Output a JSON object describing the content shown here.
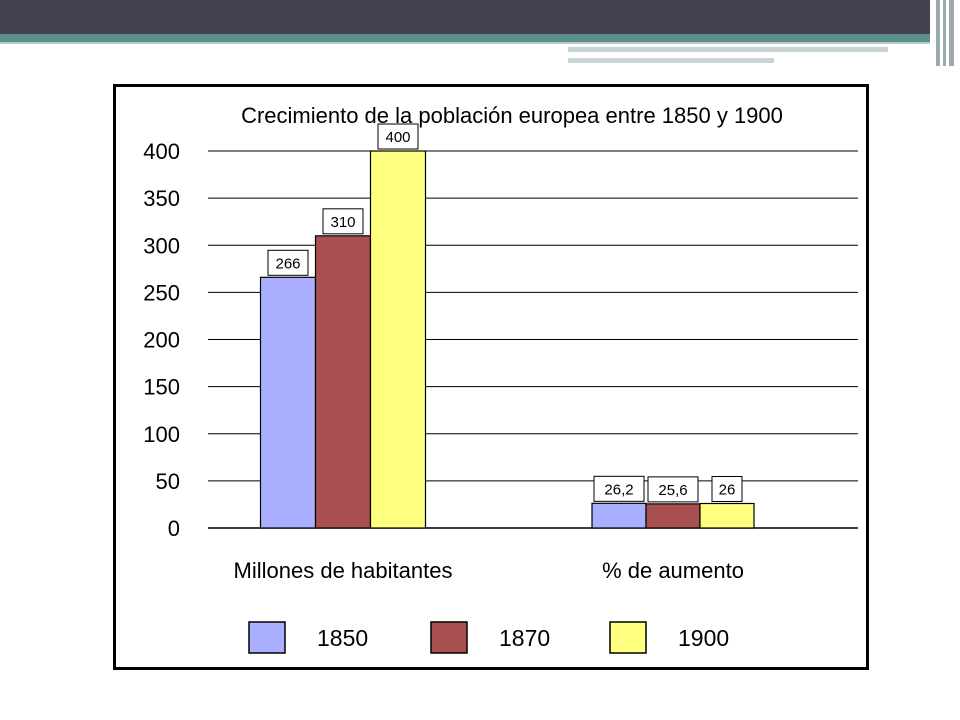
{
  "colors": {
    "header_dark": "#414150",
    "header_teal": "#5d8f8c",
    "series_1850": "#aab0ff",
    "series_1870": "#a84f4f",
    "series_1900": "#ffff80"
  },
  "chart_data": {
    "type": "bar",
    "title": "Crecimiento de la población europea entre 1850 y 1900",
    "xlabel": "",
    "ylabel": "",
    "categories": [
      "Millones de habitantes",
      "% de aumento"
    ],
    "series": [
      {
        "name": "1850",
        "values": [
          266,
          26.2
        ],
        "labels": [
          "266",
          "26,2"
        ],
        "color": "#aab0ff"
      },
      {
        "name": "1870",
        "values": [
          310,
          25.6
        ],
        "labels": [
          "310",
          "25,6"
        ],
        "color": "#a84f4f"
      },
      {
        "name": "1900",
        "values": [
          400,
          26
        ],
        "labels": [
          "400",
          "26"
        ],
        "color": "#ffff80"
      }
    ],
    "ylim": [
      0,
      400
    ],
    "yticks": [
      "0",
      "50",
      "100",
      "150",
      "200",
      "250",
      "300",
      "350",
      "400"
    ],
    "grid": true,
    "legend": "bottom"
  }
}
